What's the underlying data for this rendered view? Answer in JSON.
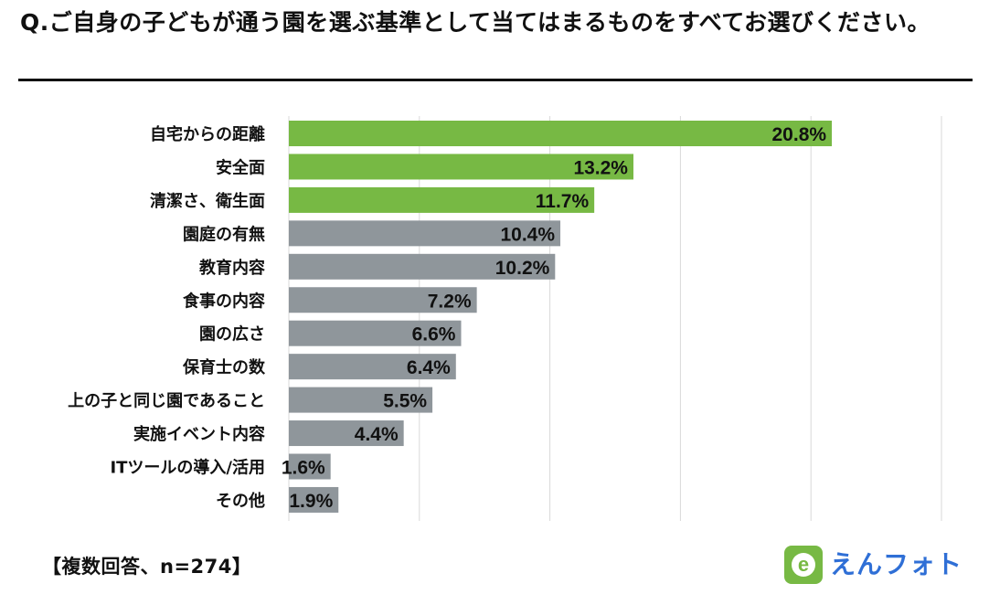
{
  "header": {
    "question": "Q.ご自身の子どもが通う園を選ぶ基準として当てはまるものをすべてお選びください。"
  },
  "footer": {
    "note": "【複数回答、n=274】"
  },
  "brand": {
    "name": "えんフォト",
    "mark": "e"
  },
  "colors": {
    "highlight": "#77b944",
    "default": "#8f969b",
    "grid": "#d9d9d9",
    "brand_blue": "#2f6fd6",
    "brand_green": "#77b944"
  },
  "chart_data": {
    "type": "bar",
    "orientation": "horizontal",
    "title": "",
    "xlabel": "",
    "ylabel": "",
    "unit": "%",
    "xlim": [
      0,
      25
    ],
    "grid": true,
    "categories": [
      "自宅からの距離",
      "安全面",
      "清潔さ、衛生面",
      "園庭の有無",
      "教育内容",
      "食事の内容",
      "園の広さ",
      "保育士の数",
      "上の子と同じ園であること",
      "実施イベント内容",
      "ITツールの導入/活用",
      "その他"
    ],
    "values": [
      20.8,
      13.2,
      11.7,
      10.4,
      10.2,
      7.2,
      6.6,
      6.4,
      5.5,
      4.4,
      1.6,
      1.9
    ],
    "highlighted": [
      true,
      true,
      true,
      false,
      false,
      false,
      false,
      false,
      false,
      false,
      false,
      false
    ]
  }
}
